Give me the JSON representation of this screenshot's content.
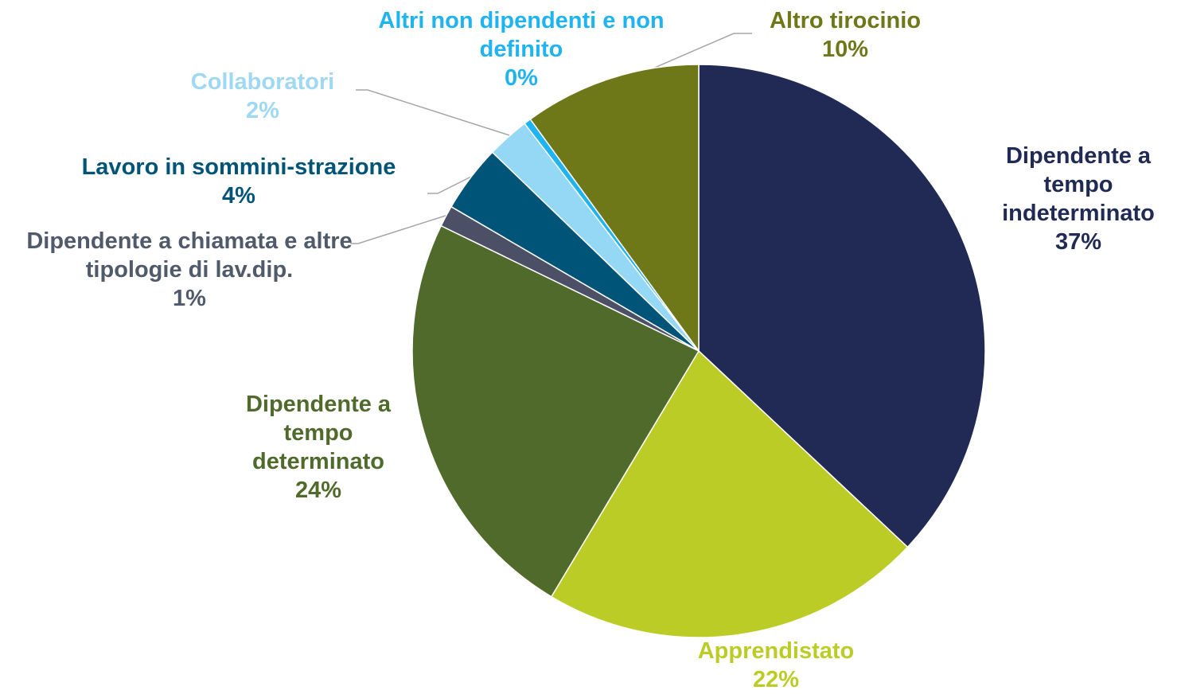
{
  "chart_data": {
    "type": "pie",
    "categories": [
      "Dipendente a tempo indeterminato",
      "Apprendistato",
      "Dipendente a tempo determinato",
      "Dipendente a chiamata e altre tipologie di lav.dip.",
      "Lavoro in sommini-strazione",
      "Collaboratori",
      "Altri non dipendenti e non definito",
      "Altro tirocinio"
    ],
    "values": [
      37.0,
      21.6,
      23.6,
      1.2,
      3.8,
      2.4,
      0.4,
      10.0
    ],
    "value_labels": [
      "37%",
      "22%",
      "24%",
      "1%",
      "4%",
      "2%",
      "0%",
      "10%"
    ],
    "colors": [
      "#202a54",
      "#bccc26",
      "#4f6a2a",
      "#4b5066",
      "#005478",
      "#95d8f5",
      "#1fb3f0",
      "#6e7818"
    ],
    "label_colors": [
      "#202a54",
      "#bccc26",
      "#4f6a2a",
      "#505a6a",
      "#005478",
      "#9ed8f2",
      "#1fb3f0",
      "#6e7818"
    ]
  }
}
